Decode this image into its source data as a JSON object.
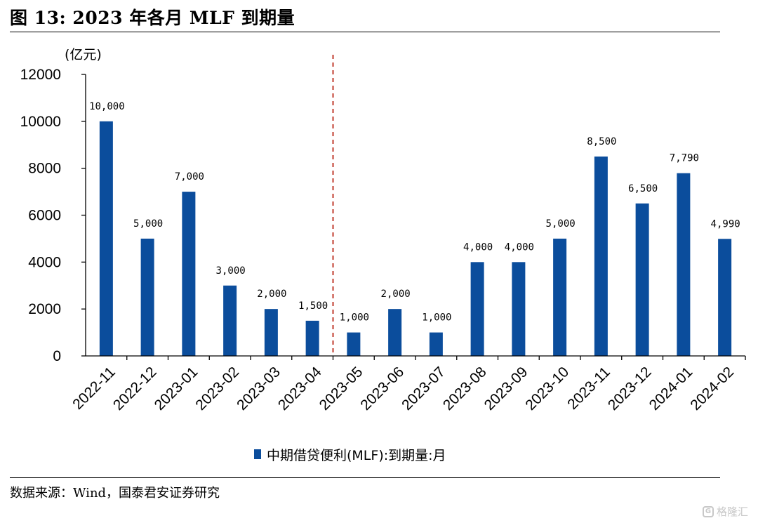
{
  "figure": {
    "title": "图 13:  2023 年各月 MLF 到期量",
    "source": "数据来源：Wind，国泰君安证券研究",
    "watermark_text": "格隆汇",
    "watermark_icon": "g-logo-icon"
  },
  "chart_data": {
    "type": "bar",
    "categories": [
      "2022-11",
      "2022-12",
      "2023-01",
      "2023-02",
      "2023-03",
      "2023-04",
      "2023-05",
      "2023-06",
      "2023-07",
      "2023-08",
      "2023-09",
      "2023-10",
      "2023-11",
      "2023-12",
      "2024-01",
      "2024-02"
    ],
    "series": [
      {
        "name": "中期借贷便利(MLF):到期量:月",
        "values": [
          10000,
          5000,
          7000,
          3000,
          2000,
          1500,
          1000,
          2000,
          1000,
          4000,
          4000,
          5000,
          8500,
          6500,
          7790,
          4990
        ],
        "data_labels": [
          "10,000",
          "5,000",
          "7,000",
          "3,000",
          "2,000",
          "1,500",
          "1,000",
          "2,000",
          "1,000",
          "4,000",
          "4,000",
          "5,000",
          "8,500",
          "6,500",
          "7,790",
          "4,990"
        ]
      }
    ],
    "ylabel": "(亿元)",
    "ylim": [
      0,
      12000
    ],
    "yticks": [
      0,
      2000,
      4000,
      6000,
      8000,
      10000,
      12000
    ],
    "reference_line": {
      "between": [
        "2023-04",
        "2023-05"
      ],
      "style": "dashed",
      "color": "#c0392b"
    },
    "bar_color": "#0b4d9c",
    "grid": false,
    "legend_position": "bottom"
  }
}
